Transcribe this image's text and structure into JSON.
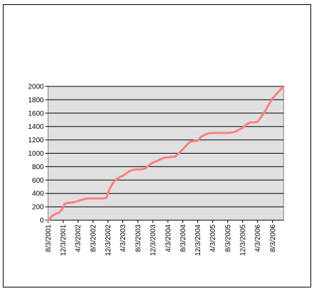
{
  "chart_data": {
    "type": "line",
    "title": "",
    "xlabel": "",
    "ylabel": "",
    "ylim": [
      0,
      2000
    ],
    "yticks": [
      0,
      200,
      400,
      600,
      800,
      1000,
      1200,
      1400,
      1600,
      1800,
      2000
    ],
    "xlim": [
      "2001-08-03",
      "2006-11-01"
    ],
    "xtick_labels": [
      "8/3/2001",
      "12/3/2001",
      "4/3/2002",
      "8/3/2002",
      "12/3/2002",
      "4/3/2003",
      "8/3/2003",
      "12/3/2003",
      "4/3/2004",
      "8/3/2004",
      "12/3/2004",
      "4/3/2005",
      "8/3/2005",
      "12/3/2005",
      "4/3/2006",
      "8/3/2006"
    ],
    "plot_background": "#e0e0e0",
    "gridlines": "horizontal",
    "legend": "none",
    "series": [
      {
        "color": "#ff8080",
        "x": [
          "2001-08-03",
          "2001-08-20",
          "2001-09-10",
          "2001-10-05",
          "2001-11-01",
          "2001-11-20",
          "2001-12-03",
          "2001-12-15",
          "2002-01-15",
          "2002-02-15",
          "2002-03-15",
          "2002-04-03",
          "2002-05-01",
          "2002-06-01",
          "2002-07-01",
          "2002-08-01",
          "2002-09-01",
          "2002-10-01",
          "2002-11-01",
          "2002-11-20",
          "2002-12-03",
          "2002-12-20",
          "2003-01-15",
          "2003-02-15",
          "2003-03-15",
          "2003-04-03",
          "2003-05-01",
          "2003-06-01",
          "2003-07-01",
          "2003-08-01",
          "2003-09-01",
          "2003-10-01",
          "2003-11-01",
          "2003-12-03",
          "2004-01-01",
          "2004-02-01",
          "2004-03-01",
          "2004-04-03",
          "2004-05-01",
          "2004-06-01",
          "2004-07-01",
          "2004-08-03",
          "2004-09-01",
          "2004-10-01",
          "2004-11-01",
          "2004-12-03",
          "2005-01-01",
          "2005-02-01",
          "2005-03-01",
          "2005-04-03",
          "2005-05-01",
          "2005-06-01",
          "2005-07-01",
          "2005-08-03",
          "2005-09-01",
          "2005-10-01",
          "2005-11-01",
          "2005-12-03",
          "2006-01-01",
          "2006-02-01",
          "2006-03-01",
          "2006-04-03",
          "2006-05-01",
          "2006-06-01",
          "2006-07-01",
          "2006-08-03",
          "2006-09-01",
          "2006-10-01",
          "2006-11-01"
        ],
        "y": [
          0,
          30,
          70,
          95,
          115,
          150,
          190,
          245,
          260,
          265,
          275,
          285,
          300,
          320,
          325,
          325,
          325,
          325,
          325,
          335,
          400,
          480,
          560,
          620,
          650,
          660,
          700,
          740,
          755,
          760,
          760,
          770,
          820,
          860,
          880,
          910,
          930,
          940,
          945,
          950,
          1000,
          1060,
          1120,
          1170,
          1185,
          1190,
          1250,
          1280,
          1300,
          1305,
          1305,
          1305,
          1305,
          1305,
          1310,
          1320,
          1350,
          1380,
          1430,
          1460,
          1460,
          1470,
          1540,
          1620,
          1720,
          1820,
          1880,
          1940,
          2000
        ]
      }
    ]
  }
}
